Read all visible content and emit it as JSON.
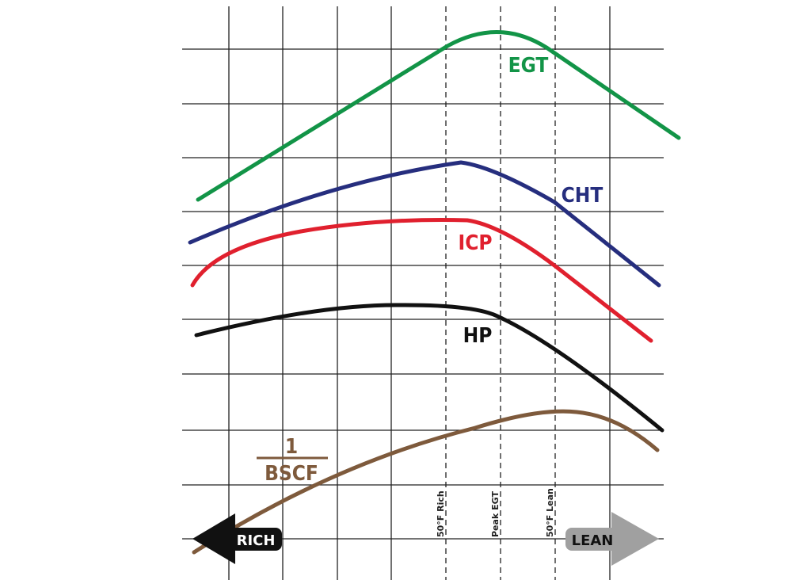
{
  "curves": {
    "egt": "EGT",
    "cht": "CHT",
    "icp": "ICP",
    "hp": "HP",
    "bscf_numerator": "1",
    "bscf_denominator": "BSCF"
  },
  "markers": {
    "rich50": "50°F Rich",
    "peak": "Peak EGT",
    "lean50": "50°F Lean"
  },
  "arrows": {
    "rich": "RICH",
    "lean": "LEAN"
  }
}
